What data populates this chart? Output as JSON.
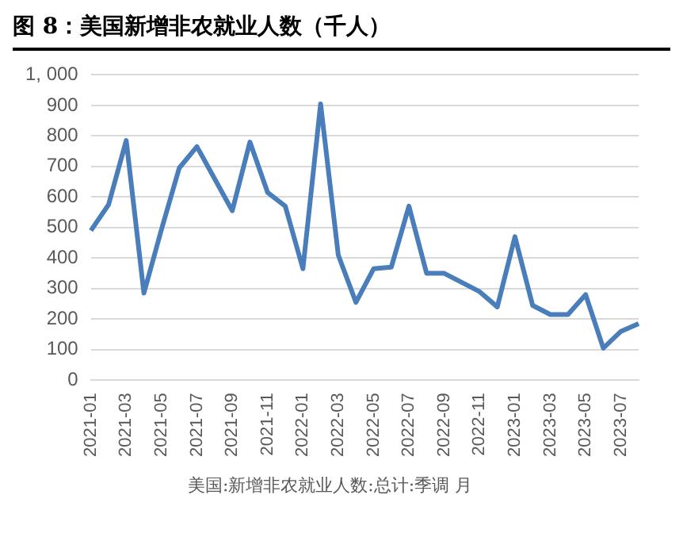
{
  "chart_data": {
    "type": "line",
    "title": "图 8：美国新增非农就业人数（千人）",
    "categories": [
      "2021-01",
      null,
      "2021-03",
      null,
      "2021-05",
      null,
      "2021-07",
      null,
      "2021-09",
      null,
      "2021-11",
      null,
      "2022-01",
      null,
      "2022-03",
      null,
      "2022-05",
      null,
      "2022-07",
      null,
      "2022-09",
      null,
      "2022-11",
      null,
      "2023-01",
      null,
      "2023-03",
      null,
      "2023-05",
      null,
      "2023-07",
      null
    ],
    "series": [
      {
        "name": "美国:新增非农就业人数:总计:季调 月",
        "color": "#4a7ebb",
        "values": [
          490,
          575,
          785,
          285,
          495,
          695,
          765,
          660,
          555,
          780,
          615,
          570,
          365,
          905,
          410,
          255,
          365,
          370,
          570,
          350,
          350,
          320,
          290,
          240,
          470,
          245,
          215,
          215,
          280,
          105,
          160,
          185
        ]
      }
    ],
    "ylim": [
      0,
      1000
    ],
    "yticks": [
      0,
      100,
      200,
      300,
      400,
      500,
      600,
      700,
      800,
      900,
      {
        "value": 1000,
        "label": "1, 000"
      }
    ],
    "grid": "y",
    "legend": "bottom",
    "marker": "none",
    "line_style": "solid"
  }
}
